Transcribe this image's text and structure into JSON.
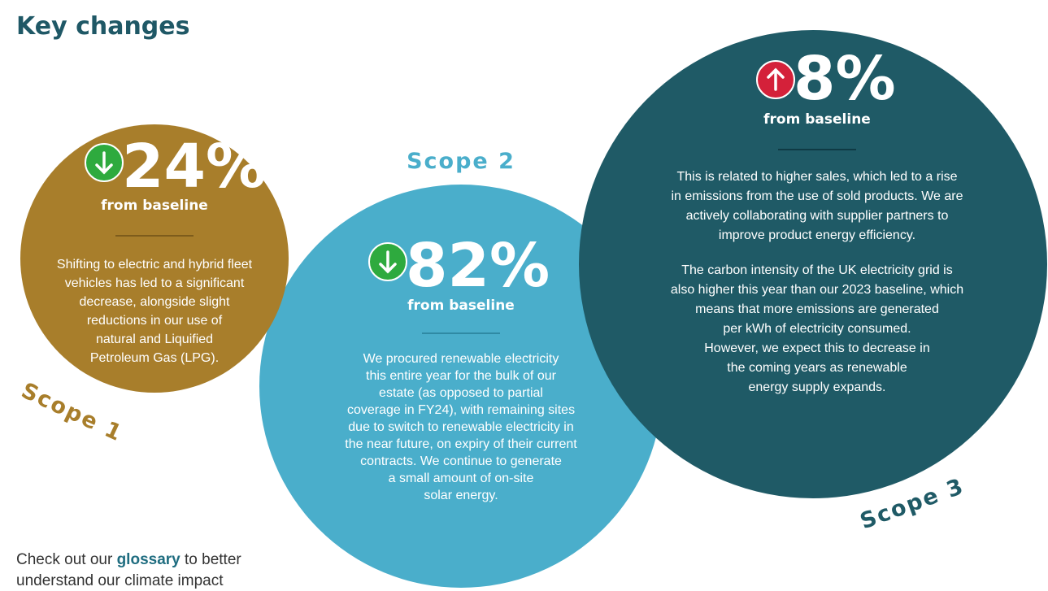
{
  "header": {
    "title": "Key changes"
  },
  "scopes": [
    {
      "label": "Scope 1",
      "change": "24%",
      "caption": "from baseline",
      "body": [
        [
          "Shifting to electric and hybrid fleet",
          "vehicles has led to a significant",
          "decrease, alongside slight",
          "reductions in our use of",
          "natural and Liquified",
          "Petroleum Gas (LPG)."
        ]
      ]
    },
    {
      "label": "Scope 2",
      "change": "82%",
      "caption": "from baseline",
      "body": [
        [
          "We procured renewable electricity",
          "this entire year for the bulk of our",
          "estate (as opposed to partial",
          "coverage in FY24), with remaining sites",
          "due to switch to renewable electricity in",
          "the near future, on expiry of their current",
          "contracts. We continue to generate",
          "a small amount of on-site",
          "solar energy."
        ]
      ]
    },
    {
      "label": "Scope 3",
      "change": "8%",
      "caption": "from baseline",
      "body": [
        [
          "This is related to higher sales, which led to a rise",
          "in emissions from the use of sold products. We are",
          "actively collaborating with supplier partners to",
          "improve product energy efficiency."
        ],
        [
          "The carbon intensity of the UK electricity grid is",
          "also higher this year than our 2023 baseline, which",
          "means that more emissions are generated",
          "per kWh of electricity consumed.",
          "However, we expect this to decrease in",
          "the coming years as renewable",
          "energy supply expands."
        ]
      ]
    }
  ],
  "footer": {
    "before": "Check out our ",
    "link": "glossary",
    "after": " to better",
    "line2": "understand our climate impact"
  }
}
